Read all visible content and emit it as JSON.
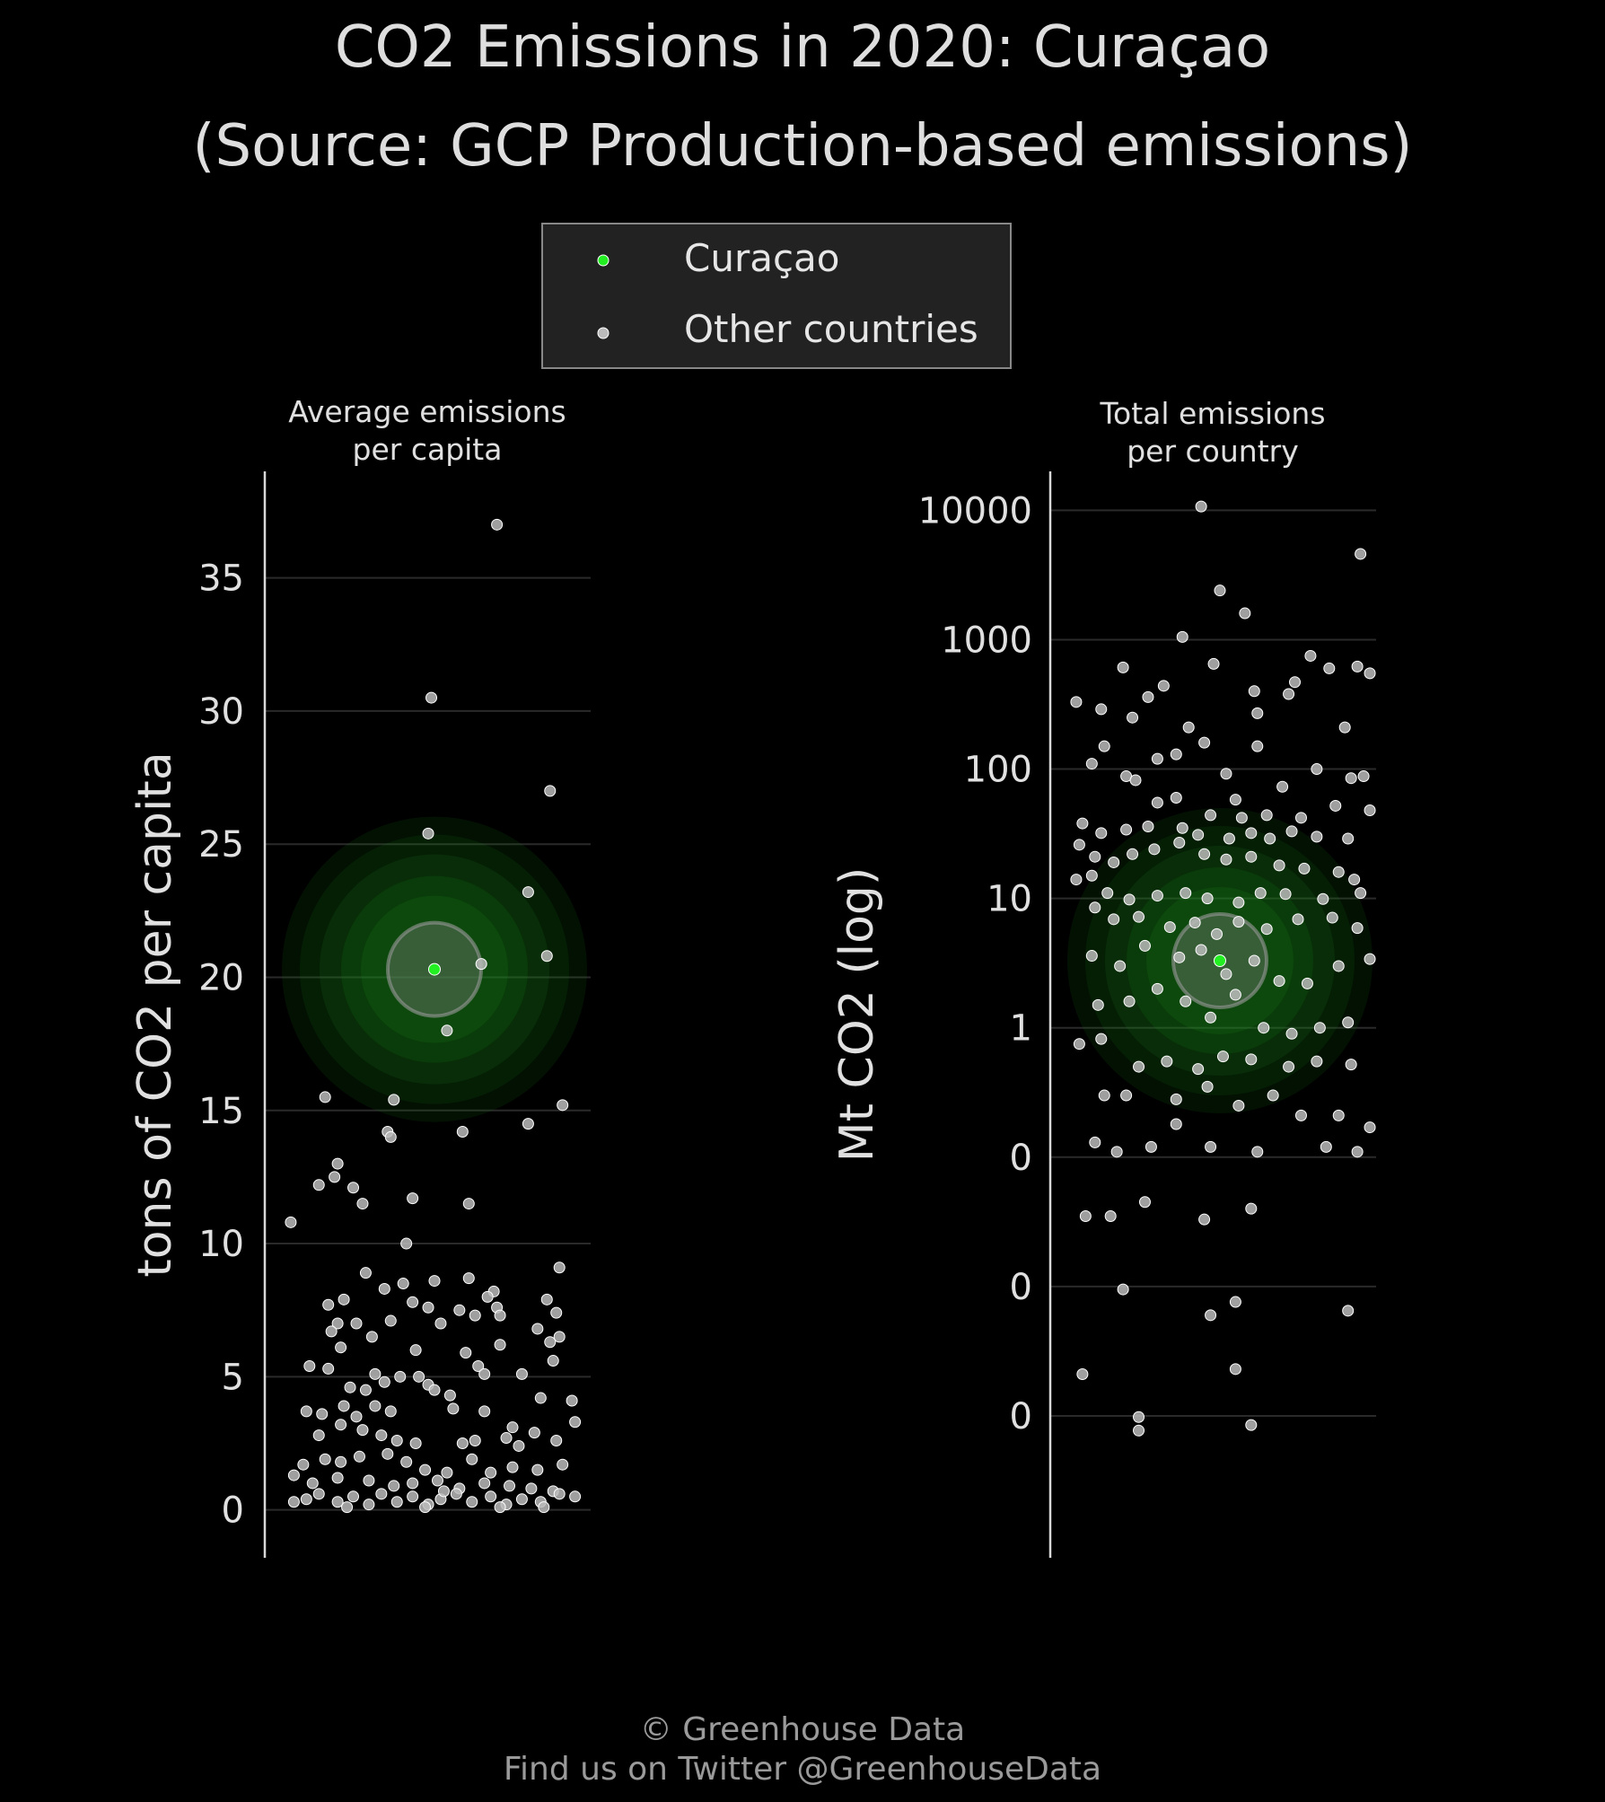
{
  "title_line1": "CO2 Emissions in 2020: Curaçao",
  "title_line2": "(Source: GCP Production-based emissions)",
  "legend": {
    "highlight_label": "Curaçao",
    "other_label": "Other countries"
  },
  "footer_line1": "© Greenhouse Data",
  "footer_line2": "Find us on Twitter @GreenhouseData",
  "colors": {
    "highlight": "#22ee22",
    "other": "#bbbbbb",
    "background": "#000000",
    "legend_bg": "#222222"
  },
  "chart_data": [
    {
      "type": "scatter",
      "title": "Average emissions per capita",
      "title_lines": [
        "Average emissions",
        "per capita"
      ],
      "ylabel": "tons of CO2 per capita",
      "ylim": [
        -1.8,
        39
      ],
      "yticks": [
        0,
        5,
        10,
        15,
        20,
        25,
        30,
        35
      ],
      "ytick_labels": [
        "0",
        "5",
        "10",
        "15",
        "20",
        "25",
        "30",
        "35"
      ],
      "grid": true,
      "highlight": {
        "name": "Curaçao",
        "x": 0.5,
        "y": 20.3
      },
      "points": [
        [
          0.7,
          37.0
        ],
        [
          0.49,
          30.5
        ],
        [
          0.87,
          27.0
        ],
        [
          0.48,
          25.4
        ],
        [
          0.8,
          23.2
        ],
        [
          0.86,
          20.8
        ],
        [
          0.65,
          20.5
        ],
        [
          0.54,
          18.0
        ],
        [
          0.37,
          15.4
        ],
        [
          0.15,
          15.5
        ],
        [
          0.91,
          15.2
        ],
        [
          0.8,
          14.5
        ],
        [
          0.35,
          14.2
        ],
        [
          0.36,
          14.0
        ],
        [
          0.59,
          14.2
        ],
        [
          0.19,
          13.0
        ],
        [
          0.18,
          12.5
        ],
        [
          0.13,
          12.2
        ],
        [
          0.24,
          12.1
        ],
        [
          0.27,
          11.5
        ],
        [
          0.43,
          11.7
        ],
        [
          0.61,
          11.5
        ],
        [
          0.04,
          10.8
        ],
        [
          0.41,
          10.0
        ],
        [
          0.9,
          9.1
        ],
        [
          0.28,
          8.9
        ],
        [
          0.61,
          8.7
        ],
        [
          0.5,
          8.6
        ],
        [
          0.4,
          8.5
        ],
        [
          0.34,
          8.3
        ],
        [
          0.69,
          8.2
        ],
        [
          0.67,
          8.0
        ],
        [
          0.86,
          7.9
        ],
        [
          0.43,
          7.8
        ],
        [
          0.7,
          7.6
        ],
        [
          0.16,
          7.7
        ],
        [
          0.21,
          7.9
        ],
        [
          0.58,
          7.5
        ],
        [
          0.48,
          7.6
        ],
        [
          0.63,
          7.3
        ],
        [
          0.71,
          7.3
        ],
        [
          0.89,
          7.4
        ],
        [
          0.19,
          7.0
        ],
        [
          0.25,
          7.0
        ],
        [
          0.36,
          7.1
        ],
        [
          0.52,
          7.0
        ],
        [
          0.83,
          6.8
        ],
        [
          0.17,
          6.7
        ],
        [
          0.3,
          6.5
        ],
        [
          0.9,
          6.5
        ],
        [
          0.44,
          6.0
        ],
        [
          0.6,
          5.9
        ],
        [
          0.87,
          6.3
        ],
        [
          0.71,
          6.2
        ],
        [
          0.2,
          6.1
        ],
        [
          0.1,
          5.4
        ],
        [
          0.16,
          5.3
        ],
        [
          0.31,
          5.1
        ],
        [
          0.39,
          5.0
        ],
        [
          0.45,
          5.0
        ],
        [
          0.64,
          5.4
        ],
        [
          0.66,
          5.1
        ],
        [
          0.78,
          5.1
        ],
        [
          0.88,
          5.6
        ],
        [
          0.23,
          4.6
        ],
        [
          0.28,
          4.5
        ],
        [
          0.34,
          4.8
        ],
        [
          0.48,
          4.7
        ],
        [
          0.55,
          4.3
        ],
        [
          0.09,
          3.7
        ],
        [
          0.14,
          3.6
        ],
        [
          0.21,
          3.9
        ],
        [
          0.25,
          3.5
        ],
        [
          0.31,
          3.9
        ],
        [
          0.36,
          3.7
        ],
        [
          0.5,
          4.5
        ],
        [
          0.56,
          3.8
        ],
        [
          0.66,
          3.7
        ],
        [
          0.75,
          3.1
        ],
        [
          0.84,
          4.2
        ],
        [
          0.94,
          4.1
        ],
        [
          0.95,
          3.3
        ],
        [
          0.13,
          2.8
        ],
        [
          0.2,
          3.2
        ],
        [
          0.27,
          3.0
        ],
        [
          0.33,
          2.8
        ],
        [
          0.38,
          2.6
        ],
        [
          0.44,
          2.5
        ],
        [
          0.59,
          2.5
        ],
        [
          0.63,
          2.6
        ],
        [
          0.73,
          2.7
        ],
        [
          0.77,
          2.4
        ],
        [
          0.82,
          2.9
        ],
        [
          0.89,
          2.6
        ],
        [
          0.08,
          1.7
        ],
        [
          0.15,
          1.9
        ],
        [
          0.2,
          1.8
        ],
        [
          0.26,
          2.0
        ],
        [
          0.35,
          2.1
        ],
        [
          0.41,
          1.8
        ],
        [
          0.47,
          1.5
        ],
        [
          0.54,
          1.4
        ],
        [
          0.62,
          1.9
        ],
        [
          0.68,
          1.4
        ],
        [
          0.75,
          1.6
        ],
        [
          0.83,
          1.5
        ],
        [
          0.91,
          1.7
        ],
        [
          0.05,
          1.3
        ],
        [
          0.11,
          1.0
        ],
        [
          0.19,
          1.2
        ],
        [
          0.29,
          1.1
        ],
        [
          0.37,
          0.9
        ],
        [
          0.43,
          1.0
        ],
        [
          0.51,
          1.1
        ],
        [
          0.58,
          0.8
        ],
        [
          0.66,
          1.0
        ],
        [
          0.74,
          0.9
        ],
        [
          0.81,
          0.8
        ],
        [
          0.88,
          0.7
        ],
        [
          0.05,
          0.3
        ],
        [
          0.09,
          0.4
        ],
        [
          0.13,
          0.6
        ],
        [
          0.19,
          0.3
        ],
        [
          0.24,
          0.5
        ],
        [
          0.29,
          0.2
        ],
        [
          0.33,
          0.6
        ],
        [
          0.38,
          0.3
        ],
        [
          0.43,
          0.5
        ],
        [
          0.48,
          0.2
        ],
        [
          0.52,
          0.4
        ],
        [
          0.57,
          0.6
        ],
        [
          0.62,
          0.3
        ],
        [
          0.68,
          0.5
        ],
        [
          0.73,
          0.2
        ],
        [
          0.78,
          0.4
        ],
        [
          0.84,
          0.3
        ],
        [
          0.9,
          0.6
        ],
        [
          0.95,
          0.5
        ],
        [
          0.22,
          0.1
        ],
        [
          0.47,
          0.1
        ],
        [
          0.71,
          0.1
        ],
        [
          0.53,
          0.7
        ],
        [
          0.85,
          0.1
        ]
      ]
    },
    {
      "type": "scatter",
      "title": "Total emissions per country",
      "title_lines": [
        "Total emissions",
        "per country"
      ],
      "ylabel": "Mt CO2 (log)",
      "yscale": "log",
      "ylim": [
        8e-05,
        20000
      ],
      "yticks": [
        0.001,
        0.01,
        0.1,
        1,
        10,
        100,
        1000,
        10000
      ],
      "ytick_labels": [
        "0",
        "0",
        "0",
        "1",
        "10",
        "100",
        "1000",
        "10000"
      ],
      "grid": true,
      "highlight": {
        "name": "Curaçao",
        "x": 0.5,
        "y": 3.3
      },
      "points": [
        [
          0.44,
          10700
        ],
        [
          0.95,
          4600
        ],
        [
          0.5,
          2400
        ],
        [
          0.58,
          1600
        ],
        [
          0.38,
          1050
        ],
        [
          0.48,
          650
        ],
        [
          0.19,
          610
        ],
        [
          0.79,
          750
        ],
        [
          0.85,
          600
        ],
        [
          0.94,
          620
        ],
        [
          0.98,
          550
        ],
        [
          0.74,
          470
        ],
        [
          0.72,
          380
        ],
        [
          0.61,
          400
        ],
        [
          0.04,
          330
        ],
        [
          0.12,
          290
        ],
        [
          0.27,
          360
        ],
        [
          0.32,
          440
        ],
        [
          0.62,
          270
        ],
        [
          0.9,
          210
        ],
        [
          0.22,
          250
        ],
        [
          0.4,
          210
        ],
        [
          0.45,
          160
        ],
        [
          0.13,
          150
        ],
        [
          0.62,
          150
        ],
        [
          0.36,
          130
        ],
        [
          0.3,
          120
        ],
        [
          0.09,
          110
        ],
        [
          0.81,
          100
        ],
        [
          0.2,
          88
        ],
        [
          0.52,
          92
        ],
        [
          0.92,
          85
        ],
        [
          0.96,
          88
        ],
        [
          0.23,
          82
        ],
        [
          0.7,
          73
        ],
        [
          0.55,
          58
        ],
        [
          0.3,
          55
        ],
        [
          0.36,
          60
        ],
        [
          0.47,
          44
        ],
        [
          0.57,
          42
        ],
        [
          0.65,
          44
        ],
        [
          0.76,
          42
        ],
        [
          0.87,
          52
        ],
        [
          0.98,
          48
        ],
        [
          0.06,
          38
        ],
        [
          0.12,
          32
        ],
        [
          0.2,
          34
        ],
        [
          0.27,
          36
        ],
        [
          0.38,
          35
        ],
        [
          0.43,
          31
        ],
        [
          0.53,
          29
        ],
        [
          0.6,
          32
        ],
        [
          0.66,
          29
        ],
        [
          0.73,
          33
        ],
        [
          0.81,
          30
        ],
        [
          0.91,
          29
        ],
        [
          0.05,
          26
        ],
        [
          0.1,
          21
        ],
        [
          0.16,
          19
        ],
        [
          0.22,
          22
        ],
        [
          0.29,
          24
        ],
        [
          0.37,
          27
        ],
        [
          0.45,
          22
        ],
        [
          0.52,
          20
        ],
        [
          0.6,
          21
        ],
        [
          0.69,
          18
        ],
        [
          0.77,
          17
        ],
        [
          0.88,
          16
        ],
        [
          0.93,
          14
        ],
        [
          0.04,
          14
        ],
        [
          0.09,
          15
        ],
        [
          0.14,
          11
        ],
        [
          0.21,
          9.8
        ],
        [
          0.3,
          10.5
        ],
        [
          0.39,
          11
        ],
        [
          0.46,
          10
        ],
        [
          0.56,
          9.3
        ],
        [
          0.63,
          11
        ],
        [
          0.71,
          10.8
        ],
        [
          0.83,
          9.9
        ],
        [
          0.95,
          11
        ],
        [
          0.1,
          8.5
        ],
        [
          0.16,
          6.9
        ],
        [
          0.24,
          7.2
        ],
        [
          0.34,
          6.0
        ],
        [
          0.42,
          6.5
        ],
        [
          0.49,
          5.3
        ],
        [
          0.56,
          6.6
        ],
        [
          0.65,
          5.8
        ],
        [
          0.75,
          6.9
        ],
        [
          0.86,
          7.1
        ],
        [
          0.94,
          5.9
        ],
        [
          0.09,
          3.6
        ],
        [
          0.18,
          3.0
        ],
        [
          0.26,
          4.3
        ],
        [
          0.37,
          3.5
        ],
        [
          0.44,
          4.0
        ],
        [
          0.52,
          2.6
        ],
        [
          0.61,
          3.3
        ],
        [
          0.69,
          2.3
        ],
        [
          0.78,
          2.2
        ],
        [
          0.88,
          3.0
        ],
        [
          0.98,
          3.4
        ],
        [
          0.11,
          1.5
        ],
        [
          0.21,
          1.6
        ],
        [
          0.3,
          2.0
        ],
        [
          0.39,
          1.6
        ],
        [
          0.47,
          1.2
        ],
        [
          0.55,
          1.8
        ],
        [
          0.64,
          1.0
        ],
        [
          0.73,
          0.9
        ],
        [
          0.82,
          1.0
        ],
        [
          0.91,
          1.1
        ],
        [
          0.05,
          0.75
        ],
        [
          0.12,
          0.82
        ],
        [
          0.24,
          0.5
        ],
        [
          0.33,
          0.55
        ],
        [
          0.43,
          0.48
        ],
        [
          0.51,
          0.6
        ],
        [
          0.6,
          0.57
        ],
        [
          0.72,
          0.5
        ],
        [
          0.81,
          0.55
        ],
        [
          0.92,
          0.52
        ],
        [
          0.13,
          0.3
        ],
        [
          0.2,
          0.3
        ],
        [
          0.36,
          0.28
        ],
        [
          0.46,
          0.35
        ],
        [
          0.56,
          0.25
        ],
        [
          0.67,
          0.3
        ],
        [
          0.76,
          0.21
        ],
        [
          0.88,
          0.21
        ],
        [
          0.98,
          0.17
        ],
        [
          0.1,
          0.13
        ],
        [
          0.17,
          0.11
        ],
        [
          0.28,
          0.12
        ],
        [
          0.36,
          0.18
        ],
        [
          0.47,
          0.12
        ],
        [
          0.62,
          0.11
        ],
        [
          0.84,
          0.12
        ],
        [
          0.94,
          0.11
        ],
        [
          0.07,
          0.035
        ],
        [
          0.15,
          0.035
        ],
        [
          0.26,
          0.045
        ],
        [
          0.45,
          0.033
        ],
        [
          0.6,
          0.04
        ],
        [
          0.19,
          0.0095
        ],
        [
          0.47,
          0.006
        ],
        [
          0.55,
          0.0076
        ],
        [
          0.91,
          0.0065
        ],
        [
          0.06,
          0.0021
        ],
        [
          0.55,
          0.0023
        ],
        [
          0.6,
          0.00085
        ],
        [
          0.24,
          0.00098
        ],
        [
          0.24,
          0.00077
        ]
      ]
    }
  ]
}
